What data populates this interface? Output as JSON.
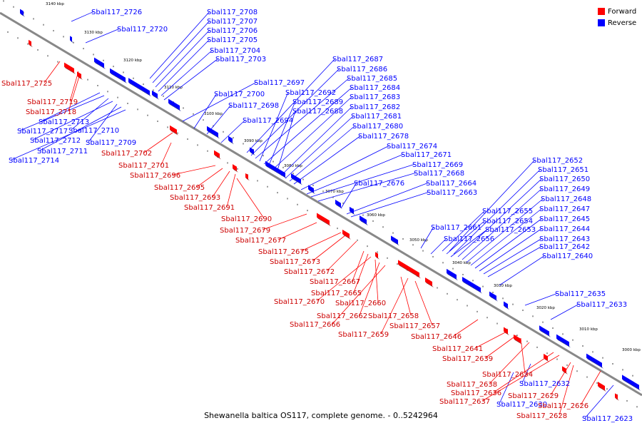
{
  "title": "Shewanella baltica OS117, complete genome. - 0..5242964",
  "legend": {
    "forward_label": "Forward",
    "reverse_label": "Reverse",
    "forward_color": "#ff0000",
    "reverse_color": "#0000ff"
  },
  "colors": {
    "forward": "#ff0000",
    "reverse": "#0000ff",
    "axis": "#666666"
  },
  "axis_ticks": [
    "3140 kbp",
    "3130 kbp",
    "3120 kbp",
    "3110 kbp",
    "3100 kbp",
    "3090 kbp",
    "3080 kbp",
    "3070 kbp",
    "3060 kbp",
    "3050 kbp",
    "3040 kbp",
    "3030 kbp",
    "3020 kbp",
    "3010 kbp",
    "3000 kbp"
  ],
  "reverse_labels": [
    "Sbal117_2726",
    "Sbal117_2720",
    "Sbal117_2708",
    "Sbal117_2707",
    "Sbal117_2706",
    "Sbal117_2705",
    "Sbal117_2704",
    "Sbal117_2703",
    "Sbal117_2713",
    "Sbal117_2717",
    "Sbal117_2710",
    "Sbal117_2712",
    "Sbal117_2709",
    "Sbal117_2711",
    "Sbal117_2714",
    "Sbal117_2697",
    "Sbal117_2700",
    "Sbal117_2698",
    "Sbal117_2694",
    "Sbal117_2687",
    "Sbal117_2686",
    "Sbal117_2685",
    "Sbal117_2692",
    "Sbal117_2684",
    "Sbal117_2689",
    "Sbal117_2683",
    "Sbal117_2688",
    "Sbal117_2682",
    "Sbal117_2681",
    "Sbal117_2680",
    "Sbal117_2678",
    "Sbal117_2674",
    "Sbal117_2671",
    "Sbal117_2669",
    "Sbal117_2676",
    "Sbal117_2668",
    "Sbal117_2664",
    "Sbal117_2663",
    "Sbal117_2652",
    "Sbal117_2651",
    "Sbal117_2650",
    "Sbal117_2649",
    "Sbal117_2648",
    "Sbal117_2655",
    "Sbal117_2647",
    "Sbal117_2654",
    "Sbal117_2645",
    "Sbal117_2661",
    "Sbal117_2653",
    "Sbal117_2644",
    "Sbal117_2656",
    "Sbal117_2643",
    "Sbal117_2642",
    "Sbal117_2640",
    "Sbal117_2635",
    "Sbal117_2633",
    "Sbal117_2632",
    "Sbal117_2630",
    "Sbal117_2623"
  ],
  "forward_labels": [
    "Sbal117_2725",
    "Sbal117_2719",
    "Sbal117_2718",
    "Sbal117_2702",
    "Sbal117_2701",
    "Sbal117_2696",
    "Sbal117_2695",
    "Sbal117_2693",
    "Sbal117_2691",
    "Sbal117_2690",
    "Sbal117_2679",
    "Sbal117_2677",
    "Sbal117_2675",
    "Sbal117_2673",
    "Sbal117_2672",
    "Sbal117_2667",
    "Sbal117_2665",
    "Sbal117_2670",
    "Sbal117_2660",
    "Sbal117_2662",
    "Sbal117_2658",
    "Sbal117_2666",
    "Sbal117_2657",
    "Sbal117_2659",
    "Sbal117_2646",
    "Sbal117_2641",
    "Sbal117_2639",
    "Sbal117_2634",
    "Sbal117_2638",
    "Sbal117_2636",
    "Sbal117_2637",
    "Sbal117_2629",
    "Sbal117_2628",
    "Sbal117_2626"
  ]
}
